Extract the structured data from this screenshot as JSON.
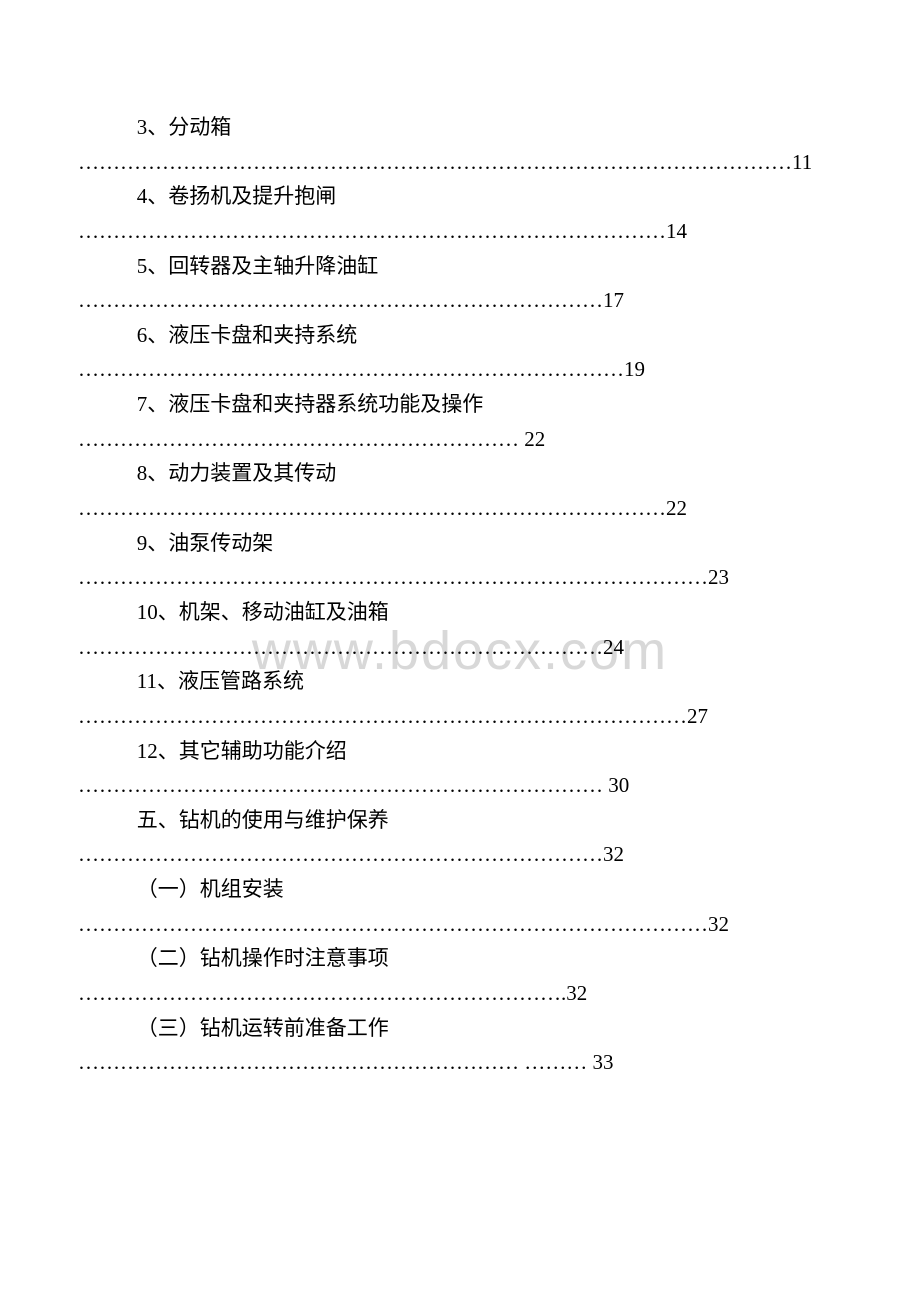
{
  "watermark": "www.bdocx.com",
  "entries": [
    {
      "title": "3、分动箱",
      "dots": "…………………………………………………………………………………………11"
    },
    {
      "title": "4、卷扬机及提升抱闸",
      "dots": "…………………………………………………………………………14"
    },
    {
      "title": "5、回转器及主轴升降油缸",
      "dots": "…………………………………………………………………17"
    },
    {
      "title": "6、液压卡盘和夹持系统",
      "dots": "……………………………………………………………………19"
    },
    {
      "title": "7、液压卡盘和夹持器系统功能及操作",
      "dots": "……………………………………………………… 22"
    },
    {
      "title": "8、动力装置及其传动",
      "dots": "…………………………………………………………………………22"
    },
    {
      "title": "9、油泵传动架",
      "dots": "………………………………………………………………………………23"
    },
    {
      "title": "10、机架、移动油缸及油箱",
      "dots": "…………………………………………………………………24"
    },
    {
      "title": "11、液压管路系统",
      "dots": "……………………………………………………………………………27"
    },
    {
      "title": "12、其它辅助功能介绍",
      "dots": "………………………………………………………………… 30"
    },
    {
      "title": "五、钻机的使用与维护保养",
      "dots": "…………………………………………………………………32"
    },
    {
      "title": "（一）机组安装",
      "dots": "………………………………………………………………………………32"
    },
    {
      "title": "（二）钻机操作时注意事项",
      "dots": "…………………………………………………………….32"
    },
    {
      "title": "（三）钻机运转前准备工作",
      "dots": "……………………………………………………… ……… 33"
    }
  ]
}
